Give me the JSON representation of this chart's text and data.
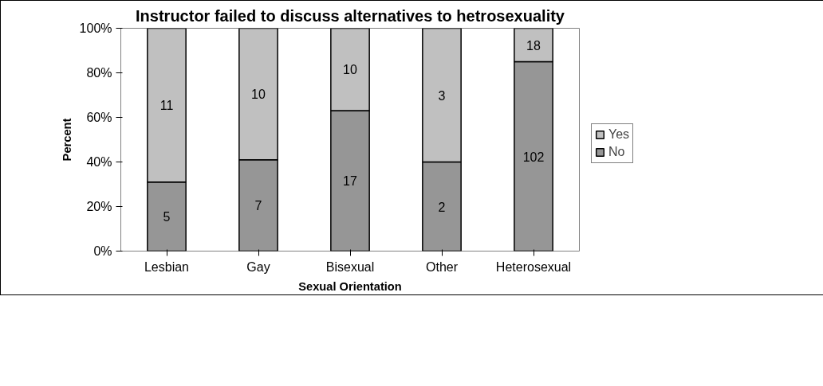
{
  "chart_data": {
    "type": "bar",
    "stacked": true,
    "title": "Instructor failed to discuss alternatives to hetrosexuality",
    "xlabel": "Sexual Orientation",
    "ylabel": "Percent",
    "categories": [
      "Lesbian",
      "Gay",
      "Bisexual",
      "Other",
      "Heterosexual"
    ],
    "series": [
      {
        "name": "No",
        "color": "#969696",
        "values": [
          31,
          41,
          63,
          40,
          85
        ]
      },
      {
        "name": "Yes",
        "color": "#c0c0c0",
        "values": [
          69,
          59,
          37,
          60,
          15
        ]
      }
    ],
    "annotations": [
      "5",
      "7",
      "17",
      "2",
      "102",
      "11",
      "10",
      "10",
      "3",
      "18"
    ],
    "ylim": [
      0,
      100
    ],
    "yticks": [
      {
        "value": 0,
        "label": "0%"
      },
      {
        "value": 20,
        "label": "20%"
      },
      {
        "value": 40,
        "label": "40%"
      },
      {
        "value": 60,
        "label": "60%"
      },
      {
        "value": 80,
        "label": "80%"
      },
      {
        "value": 100,
        "label": "100%"
      }
    ],
    "grid": false,
    "legend": "right"
  }
}
